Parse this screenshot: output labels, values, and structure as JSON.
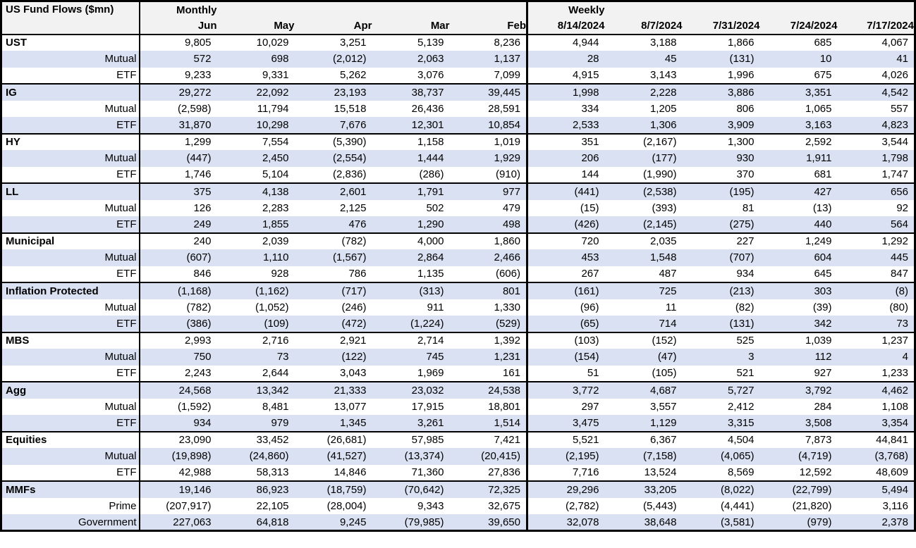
{
  "colors": {
    "stripe_row": "#d9e1f2",
    "header_bg": "#f2f2f2",
    "border": "#000000",
    "text": "#000000",
    "row_bg": "#ffffff"
  },
  "chart_data": {
    "type": "table",
    "title": "US Fund Flows ($mn)",
    "corner_label": "US Fund Flows ($mn)",
    "column_groups": [
      {
        "label": "Monthly",
        "columns": [
          "Jun",
          "May",
          "Apr",
          "Mar",
          "Feb"
        ]
      },
      {
        "label": "Weekly",
        "columns": [
          "8/14/2024",
          "8/7/2024",
          "7/31/2024",
          "7/24/2024",
          "7/17/2024"
        ]
      }
    ],
    "groups": [
      {
        "name": "UST",
        "rows": [
          {
            "label": "UST",
            "bold": true,
            "monthly": [
              "9,805",
              "10,029",
              "3,251",
              "5,139",
              "8,236"
            ],
            "weekly": [
              "4,944",
              "3,188",
              "1,866",
              "685",
              "4,067"
            ]
          },
          {
            "label": "Mutual",
            "bold": false,
            "monthly": [
              "572",
              "698",
              "(2,012)",
              "2,063",
              "1,137"
            ],
            "weekly": [
              "28",
              "45",
              "(131)",
              "10",
              "41"
            ]
          },
          {
            "label": "ETF",
            "bold": false,
            "monthly": [
              "9,233",
              "9,331",
              "5,262",
              "3,076",
              "7,099"
            ],
            "weekly": [
              "4,915",
              "3,143",
              "1,996",
              "675",
              "4,026"
            ]
          }
        ]
      },
      {
        "name": "IG",
        "rows": [
          {
            "label": "IG",
            "bold": true,
            "monthly": [
              "29,272",
              "22,092",
              "23,193",
              "38,737",
              "39,445"
            ],
            "weekly": [
              "1,998",
              "2,228",
              "3,886",
              "3,351",
              "4,542"
            ]
          },
          {
            "label": "Mutual",
            "bold": false,
            "monthly": [
              "(2,598)",
              "11,794",
              "15,518",
              "26,436",
              "28,591"
            ],
            "weekly": [
              "334",
              "1,205",
              "806",
              "1,065",
              "557"
            ]
          },
          {
            "label": "ETF",
            "bold": false,
            "monthly": [
              "31,870",
              "10,298",
              "7,676",
              "12,301",
              "10,854"
            ],
            "weekly": [
              "2,533",
              "1,306",
              "3,909",
              "3,163",
              "4,823"
            ]
          }
        ]
      },
      {
        "name": "HY",
        "rows": [
          {
            "label": "HY",
            "bold": true,
            "monthly": [
              "1,299",
              "7,554",
              "(5,390)",
              "1,158",
              "1,019"
            ],
            "weekly": [
              "351",
              "(2,167)",
              "1,300",
              "2,592",
              "3,544"
            ]
          },
          {
            "label": "Mutual",
            "bold": false,
            "monthly": [
              "(447)",
              "2,450",
              "(2,554)",
              "1,444",
              "1,929"
            ],
            "weekly": [
              "206",
              "(177)",
              "930",
              "1,911",
              "1,798"
            ]
          },
          {
            "label": "ETF",
            "bold": false,
            "monthly": [
              "1,746",
              "5,104",
              "(2,836)",
              "(286)",
              "(910)"
            ],
            "weekly": [
              "144",
              "(1,990)",
              "370",
              "681",
              "1,747"
            ]
          }
        ]
      },
      {
        "name": "LL",
        "rows": [
          {
            "label": "LL",
            "bold": true,
            "monthly": [
              "375",
              "4,138",
              "2,601",
              "1,791",
              "977"
            ],
            "weekly": [
              "(441)",
              "(2,538)",
              "(195)",
              "427",
              "656"
            ]
          },
          {
            "label": "Mutual",
            "bold": false,
            "monthly": [
              "126",
              "2,283",
              "2,125",
              "502",
              "479"
            ],
            "weekly": [
              "(15)",
              "(393)",
              "81",
              "(13)",
              "92"
            ]
          },
          {
            "label": "ETF",
            "bold": false,
            "monthly": [
              "249",
              "1,855",
              "476",
              "1,290",
              "498"
            ],
            "weekly": [
              "(426)",
              "(2,145)",
              "(275)",
              "440",
              "564"
            ]
          }
        ]
      },
      {
        "name": "Municipal",
        "rows": [
          {
            "label": "Municipal",
            "bold": true,
            "monthly": [
              "240",
              "2,039",
              "(782)",
              "4,000",
              "1,860"
            ],
            "weekly": [
              "720",
              "2,035",
              "227",
              "1,249",
              "1,292"
            ]
          },
          {
            "label": "Mutual",
            "bold": false,
            "monthly": [
              "(607)",
              "1,110",
              "(1,567)",
              "2,864",
              "2,466"
            ],
            "weekly": [
              "453",
              "1,548",
              "(707)",
              "604",
              "445"
            ]
          },
          {
            "label": "ETF",
            "bold": false,
            "monthly": [
              "846",
              "928",
              "786",
              "1,135",
              "(606)"
            ],
            "weekly": [
              "267",
              "487",
              "934",
              "645",
              "847"
            ]
          }
        ]
      },
      {
        "name": "Inflation Protected",
        "rows": [
          {
            "label": "Inflation Protected",
            "bold": true,
            "monthly": [
              "(1,168)",
              "(1,162)",
              "(717)",
              "(313)",
              "801"
            ],
            "weekly": [
              "(161)",
              "725",
              "(213)",
              "303",
              "(8)"
            ]
          },
          {
            "label": "Mutual",
            "bold": false,
            "monthly": [
              "(782)",
              "(1,052)",
              "(246)",
              "911",
              "1,330"
            ],
            "weekly": [
              "(96)",
              "11",
              "(82)",
              "(39)",
              "(80)"
            ]
          },
          {
            "label": "ETF",
            "bold": false,
            "monthly": [
              "(386)",
              "(109)",
              "(472)",
              "(1,224)",
              "(529)"
            ],
            "weekly": [
              "(65)",
              "714",
              "(131)",
              "342",
              "73"
            ]
          }
        ]
      },
      {
        "name": "MBS",
        "rows": [
          {
            "label": "MBS",
            "bold": true,
            "monthly": [
              "2,993",
              "2,716",
              "2,921",
              "2,714",
              "1,392"
            ],
            "weekly": [
              "(103)",
              "(152)",
              "525",
              "1,039",
              "1,237"
            ]
          },
          {
            "label": "Mutual",
            "bold": false,
            "monthly": [
              "750",
              "73",
              "(122)",
              "745",
              "1,231"
            ],
            "weekly": [
              "(154)",
              "(47)",
              "3",
              "112",
              "4"
            ]
          },
          {
            "label": "ETF",
            "bold": false,
            "monthly": [
              "2,243",
              "2,644",
              "3,043",
              "1,969",
              "161"
            ],
            "weekly": [
              "51",
              "(105)",
              "521",
              "927",
              "1,233"
            ]
          }
        ]
      },
      {
        "name": "Agg",
        "rows": [
          {
            "label": "Agg",
            "bold": true,
            "monthly": [
              "24,568",
              "13,342",
              "21,333",
              "23,032",
              "24,538"
            ],
            "weekly": [
              "3,772",
              "4,687",
              "5,727",
              "3,792",
              "4,462"
            ]
          },
          {
            "label": "Mutual",
            "bold": false,
            "monthly": [
              "(1,592)",
              "8,481",
              "13,077",
              "17,915",
              "18,801"
            ],
            "weekly": [
              "297",
              "3,557",
              "2,412",
              "284",
              "1,108"
            ]
          },
          {
            "label": "ETF",
            "bold": false,
            "monthly": [
              "934",
              "979",
              "1,345",
              "3,261",
              "1,514"
            ],
            "weekly": [
              "3,475",
              "1,129",
              "3,315",
              "3,508",
              "3,354"
            ]
          }
        ]
      },
      {
        "name": "Equities",
        "rows": [
          {
            "label": "Equities",
            "bold": true,
            "monthly": [
              "23,090",
              "33,452",
              "(26,681)",
              "57,985",
              "7,421"
            ],
            "weekly": [
              "5,521",
              "6,367",
              "4,504",
              "7,873",
              "44,841"
            ]
          },
          {
            "label": "Mutual",
            "bold": false,
            "monthly": [
              "(19,898)",
              "(24,860)",
              "(41,527)",
              "(13,374)",
              "(20,415)"
            ],
            "weekly": [
              "(2,195)",
              "(7,158)",
              "(4,065)",
              "(4,719)",
              "(3,768)"
            ]
          },
          {
            "label": "ETF",
            "bold": false,
            "monthly": [
              "42,988",
              "58,313",
              "14,846",
              "71,360",
              "27,836"
            ],
            "weekly": [
              "7,716",
              "13,524",
              "8,569",
              "12,592",
              "48,609"
            ]
          }
        ]
      },
      {
        "name": "MMFs",
        "rows": [
          {
            "label": "MMFs",
            "bold": true,
            "monthly": [
              "19,146",
              "86,923",
              "(18,759)",
              "(70,642)",
              "72,325"
            ],
            "weekly": [
              "29,296",
              "33,205",
              "(8,022)",
              "(22,799)",
              "5,494"
            ]
          },
          {
            "label": "Prime",
            "bold": false,
            "monthly": [
              "(207,917)",
              "22,105",
              "(28,004)",
              "9,343",
              "32,675"
            ],
            "weekly": [
              "(2,782)",
              "(5,443)",
              "(4,441)",
              "(21,820)",
              "3,116"
            ]
          },
          {
            "label": "Government",
            "bold": false,
            "monthly": [
              "227,063",
              "64,818",
              "9,245",
              "(79,985)",
              "39,650"
            ],
            "weekly": [
              "32,078",
              "38,648",
              "(3,581)",
              "(979)",
              "2,378"
            ]
          }
        ]
      }
    ]
  }
}
